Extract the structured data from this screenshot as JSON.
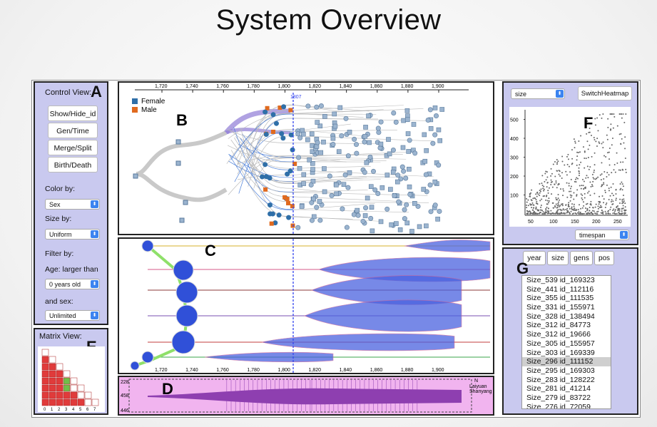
{
  "title": "System Overview",
  "control_view": {
    "label": "Control View:",
    "letter": "A",
    "buttons": [
      "Show/Hide_id",
      "Gen/Time",
      "Merge/Split",
      "Birth/Death"
    ],
    "color_by_label": "Color by:",
    "color_by_value": "Sex",
    "size_by_label": "Size by:",
    "size_by_value": "Uniform",
    "filter_by_label": "Filter by:",
    "age_label": "Age: larger than",
    "age_value": "0 years old",
    "sex_label": "and sex:",
    "sex_value": "Unlimited"
  },
  "matrix_view": {
    "label": "Matrix View:",
    "letter": "E",
    "axis": [
      "0",
      "1",
      "2",
      "3",
      "4",
      "5",
      "6",
      "7"
    ]
  },
  "tree_view": {
    "letter": "B",
    "axis_ticks": [
      "1,720",
      "1,740",
      "1,760",
      "1,780",
      "1,800",
      "1,820",
      "1,840",
      "1,860",
      "1,880",
      "1,900"
    ],
    "marker_label": "1807",
    "legend": [
      {
        "label": "Female",
        "color": "#2f6fa8"
      },
      {
        "label": "Male",
        "color": "#e06a1f"
      }
    ]
  },
  "timeline_view": {
    "letter": "C",
    "axis_ticks": [
      "1,720",
      "1,740",
      "1,760",
      "1,780",
      "1,800",
      "1,820",
      "1,840",
      "1,860",
      "1,880",
      "1,900"
    ]
  },
  "overview_strip": {
    "letter": "D",
    "left_labels": [
      "228",
      "458",
      "446"
    ],
    "right_labels": [
      "N",
      "Laiyuan",
      "Shanyang"
    ]
  },
  "scatter_view": {
    "letter": "F",
    "select_value": "size",
    "switch_label": "SwitchHeatmap",
    "x_select_value": "timespan",
    "y_ticks": [
      "100",
      "200",
      "300",
      "400",
      "500"
    ],
    "x_ticks": [
      "50",
      "100",
      "150",
      "200",
      "250"
    ]
  },
  "list_view": {
    "letter": "G",
    "tabs": [
      "year",
      "size",
      "gens",
      "pos"
    ],
    "items": [
      "Size_539 id_169323",
      "Size_441 id_112116",
      "Size_355 id_111535",
      "Size_331 id_155971",
      "Size_328 id_138494",
      "Size_312 id_84773",
      "Size_312 id_19666",
      "Size_305 id_155957",
      "Size_303 id_169339",
      "Size_296 id_111152",
      "Size_295 id_169303",
      "Size_283 id_128222",
      "Size_281 id_41214",
      "Size_279 id_83722",
      "Size_276 id_72059"
    ],
    "highlighted_index": 9
  },
  "colors": {
    "panel_bg": "#c9c9ef",
    "female": "#2f6fa8",
    "male": "#e06a1f",
    "marker": "#3344ee"
  }
}
